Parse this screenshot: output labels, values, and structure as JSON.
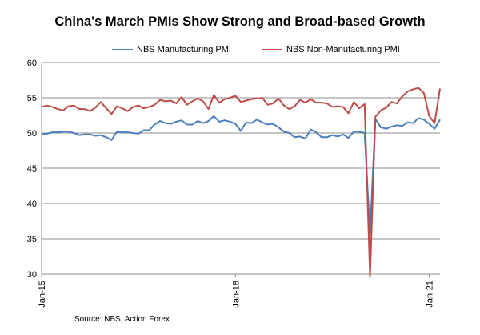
{
  "chart_data": {
    "type": "line",
    "title": "China's March PMIs Show Strong and Broad-based Growth",
    "source": "Source: NBS, Action Forex",
    "y_range": [
      30,
      60
    ],
    "y_ticks": [
      "30",
      "35",
      "40",
      "45",
      "50",
      "55",
      "60"
    ],
    "x_start": "2015-01",
    "x_end": "2021-03",
    "x_tick_labels": [
      "Jan-15",
      "Jan-18",
      "Jan-21"
    ],
    "grid": "horizontal",
    "legend_position": "top",
    "series": [
      {
        "name": "NBS Manufacturing PMI",
        "color": "#4a7ebb",
        "values": [
          49.8,
          49.9,
          50.1,
          50.1,
          50.2,
          50.2,
          50.0,
          49.7,
          49.8,
          49.8,
          49.6,
          49.7,
          49.4,
          49.0,
          50.2,
          50.1,
          50.1,
          50.0,
          49.9,
          50.4,
          50.4,
          51.2,
          51.7,
          51.4,
          51.3,
          51.6,
          51.8,
          51.2,
          51.2,
          51.7,
          51.4,
          51.7,
          52.4,
          51.6,
          51.8,
          51.6,
          51.3,
          50.3,
          51.5,
          51.4,
          51.9,
          51.5,
          51.2,
          51.3,
          50.8,
          50.2,
          50.0,
          49.4,
          49.5,
          49.2,
          50.5,
          50.1,
          49.4,
          49.4,
          49.7,
          49.5,
          49.8,
          49.3,
          50.2,
          50.2,
          50.0,
          35.7,
          52.0,
          50.8,
          50.6,
          50.9,
          51.1,
          51.0,
          51.5,
          51.4,
          52.1,
          51.9,
          51.3,
          50.6,
          51.9
        ]
      },
      {
        "name": "NBS Non-Manufacturing PMI",
        "color": "#be4b48",
        "values": [
          53.7,
          53.9,
          53.7,
          53.4,
          53.2,
          53.8,
          53.9,
          53.4,
          53.4,
          53.1,
          53.6,
          54.4,
          53.5,
          52.7,
          53.8,
          53.5,
          53.1,
          53.7,
          53.9,
          53.5,
          53.7,
          54.0,
          54.7,
          54.5,
          54.6,
          54.2,
          55.1,
          54.0,
          54.5,
          54.9,
          54.5,
          53.4,
          55.4,
          54.3,
          54.8,
          55.0,
          55.3,
          54.4,
          54.6,
          54.8,
          54.9,
          55.0,
          54.0,
          54.2,
          54.9,
          53.9,
          53.4,
          53.8,
          54.7,
          54.3,
          54.8,
          54.3,
          54.3,
          54.2,
          53.7,
          53.8,
          53.7,
          52.8,
          54.4,
          53.5,
          54.1,
          29.6,
          52.3,
          53.2,
          53.6,
          54.4,
          54.2,
          55.2,
          55.9,
          56.2,
          56.4,
          55.7,
          52.4,
          51.4,
          56.3
        ]
      }
    ]
  }
}
